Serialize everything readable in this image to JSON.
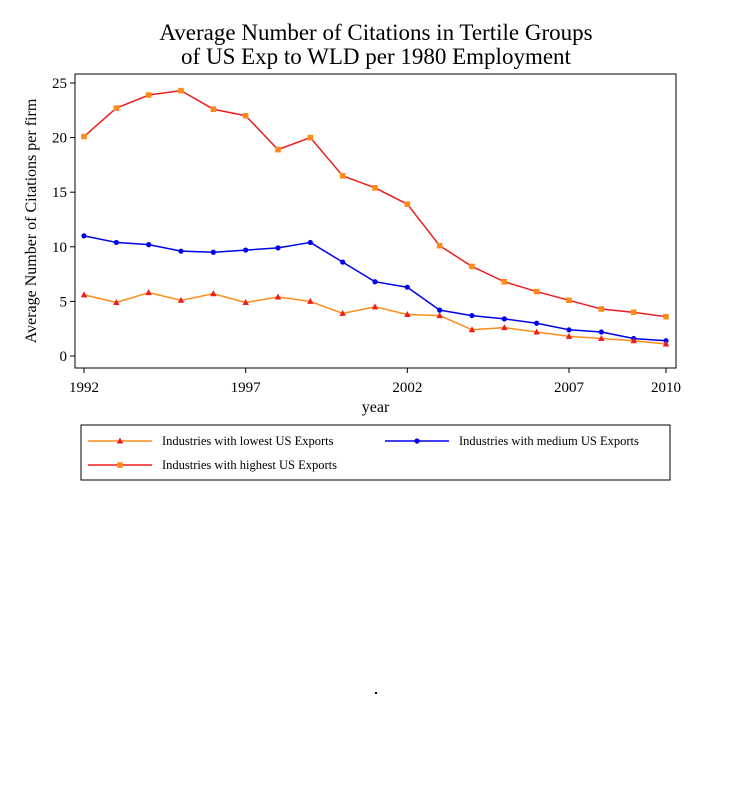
{
  "chart_data": {
    "type": "line",
    "title": [
      "Average Number of Citations in Tertile Groups",
      "of US Exp to WLD per 1980 Employment"
    ],
    "xlabel": "year",
    "ylabel": "Average Number of Citations per firm",
    "x": [
      1992,
      1993,
      1994,
      1995,
      1996,
      1997,
      1998,
      1999,
      2000,
      2001,
      2002,
      2003,
      2004,
      2005,
      2006,
      2007,
      2008,
      2009,
      2010
    ],
    "xticks": [
      1992,
      1997,
      2002,
      2007,
      2010
    ],
    "yticks": [
      0,
      5,
      10,
      15,
      20,
      25
    ],
    "xlim": [
      1992,
      2010
    ],
    "ylim": [
      -1,
      26
    ],
    "grid": false,
    "legend_position": "bottom",
    "series": [
      {
        "name": "Industries with lowest US Exports",
        "line_color": "#ff8c1a",
        "marker_color": "#ee1c1c",
        "marker": "triangle",
        "values": [
          5.6,
          4.9,
          5.8,
          5.1,
          5.7,
          4.9,
          5.4,
          5.0,
          3.9,
          4.5,
          3.8,
          3.7,
          2.4,
          2.6,
          2.2,
          1.8,
          1.6,
          1.4,
          1.1
        ]
      },
      {
        "name": "Industries with medium US Exports",
        "line_color": "#0000ee",
        "marker_color": "#0000ee",
        "marker": "circle",
        "values": [
          11.0,
          10.4,
          10.2,
          9.6,
          9.5,
          9.7,
          9.9,
          10.4,
          8.6,
          6.8,
          6.3,
          4.2,
          3.7,
          3.4,
          3.0,
          2.4,
          2.2,
          1.6,
          1.4
        ]
      },
      {
        "name": "Industries with highest US Exports",
        "line_color": "#ee1c1c",
        "marker_color": "#ff8c1a",
        "marker": "square",
        "values": [
          20.1,
          22.7,
          23.9,
          24.3,
          22.6,
          22.0,
          18.9,
          20.0,
          16.5,
          15.4,
          13.9,
          10.1,
          8.2,
          6.8,
          5.9,
          5.1,
          4.3,
          4.0,
          3.6
        ]
      }
    ]
  },
  "stray_mark": "."
}
